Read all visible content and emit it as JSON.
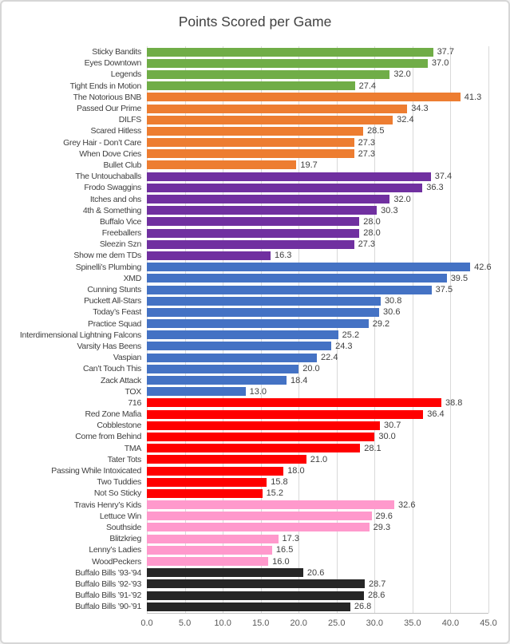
{
  "chart_data": {
    "type": "bar",
    "orientation": "horizontal",
    "title": "Points Scored per Game",
    "xlabel": "",
    "ylabel": "",
    "xlim": [
      0,
      45
    ],
    "grid": true,
    "legend": "none",
    "x_ticks": [
      "0.0",
      "5.0",
      "10.0",
      "15.0",
      "20.0",
      "25.0",
      "30.0",
      "35.0",
      "40.0",
      "45.0"
    ],
    "group_colors": {
      "green": "#70AD47",
      "orange": "#ED7D31",
      "purple": "#7030A0",
      "blue": "#4472C4",
      "red": "#FF0000",
      "pink": "#FF99CC",
      "black": "#262626"
    },
    "bars": [
      {
        "label": "Sticky Bandits",
        "value": 37.7,
        "group": "green"
      },
      {
        "label": "Eyes Downtown",
        "value": 37.0,
        "group": "green"
      },
      {
        "label": "Legends",
        "value": 32.0,
        "group": "green"
      },
      {
        "label": "Tight Ends in Motion",
        "value": 27.4,
        "group": "green"
      },
      {
        "label": "The Notorious BNB",
        "value": 41.3,
        "group": "orange"
      },
      {
        "label": "Passed Our Prime",
        "value": 34.3,
        "group": "orange"
      },
      {
        "label": "DILFS",
        "value": 32.4,
        "group": "orange"
      },
      {
        "label": "Scared Hitless",
        "value": 28.5,
        "group": "orange"
      },
      {
        "label": "Grey Hair - Don’t Care",
        "value": 27.3,
        "group": "orange"
      },
      {
        "label": "When Dove Cries",
        "value": 27.3,
        "group": "orange"
      },
      {
        "label": "Bullet Club",
        "value": 19.7,
        "group": "orange"
      },
      {
        "label": "The Untouchaballs",
        "value": 37.4,
        "group": "purple"
      },
      {
        "label": "Frodo Swaggins",
        "value": 36.3,
        "group": "purple"
      },
      {
        "label": "Itches and ohs",
        "value": 32.0,
        "group": "purple"
      },
      {
        "label": "4th & Something",
        "value": 30.3,
        "group": "purple"
      },
      {
        "label": "Buffalo Vice",
        "value": 28.0,
        "group": "purple"
      },
      {
        "label": "Freeballers",
        "value": 28.0,
        "group": "purple"
      },
      {
        "label": "Sleezin Szn",
        "value": 27.3,
        "group": "purple"
      },
      {
        "label": "Show me dem TDs",
        "value": 16.3,
        "group": "purple"
      },
      {
        "label": "Spinelli’s Plumbing",
        "value": 42.6,
        "group": "blue"
      },
      {
        "label": "XMD",
        "value": 39.5,
        "group": "blue"
      },
      {
        "label": "Cunning Stunts",
        "value": 37.5,
        "group": "blue"
      },
      {
        "label": "Puckett All-Stars",
        "value": 30.8,
        "group": "blue"
      },
      {
        "label": "Today’s Feast",
        "value": 30.6,
        "group": "blue"
      },
      {
        "label": "Practice Squad",
        "value": 29.2,
        "group": "blue"
      },
      {
        "label": "Interdimensional Lightning Falcons",
        "value": 25.2,
        "group": "blue"
      },
      {
        "label": "Varsity Has Beens",
        "value": 24.3,
        "group": "blue"
      },
      {
        "label": "Vaspian",
        "value": 22.4,
        "group": "blue"
      },
      {
        "label": "Can’t Touch This",
        "value": 20.0,
        "group": "blue"
      },
      {
        "label": "Zack Attack",
        "value": 18.4,
        "group": "blue"
      },
      {
        "label": "TOX",
        "value": 13.0,
        "group": "blue"
      },
      {
        "label": "716",
        "value": 38.8,
        "group": "red"
      },
      {
        "label": "Red Zone Mafia",
        "value": 36.4,
        "group": "red"
      },
      {
        "label": "Cobblestone",
        "value": 30.7,
        "group": "red"
      },
      {
        "label": "Come from Behind",
        "value": 30.0,
        "group": "red"
      },
      {
        "label": "TMA",
        "value": 28.1,
        "group": "red"
      },
      {
        "label": "Tater Tots",
        "value": 21.0,
        "group": "red"
      },
      {
        "label": "Passing While Intoxicated",
        "value": 18.0,
        "group": "red"
      },
      {
        "label": "Two Tuddies",
        "value": 15.8,
        "group": "red"
      },
      {
        "label": "Not So Sticky",
        "value": 15.2,
        "group": "red"
      },
      {
        "label": "Travis Henry’s Kids",
        "value": 32.6,
        "group": "pink"
      },
      {
        "label": "Lettuce Win",
        "value": 29.6,
        "group": "pink"
      },
      {
        "label": "Southside",
        "value": 29.3,
        "group": "pink"
      },
      {
        "label": "Blitzkrieg",
        "value": 17.3,
        "group": "pink"
      },
      {
        "label": "Lenny’s Ladies",
        "value": 16.5,
        "group": "pink"
      },
      {
        "label": "WoodPeckers",
        "value": 16.0,
        "group": "pink"
      },
      {
        "label": "Buffalo Bills ’93-’94",
        "value": 20.6,
        "group": "black"
      },
      {
        "label": "Buffalo Bills ’92-’93",
        "value": 28.7,
        "group": "black"
      },
      {
        "label": "Buffalo Bills ’91-’92",
        "value": 28.6,
        "group": "black"
      },
      {
        "label": "Buffalo Bills ’90-’91",
        "value": 26.8,
        "group": "black"
      }
    ]
  }
}
